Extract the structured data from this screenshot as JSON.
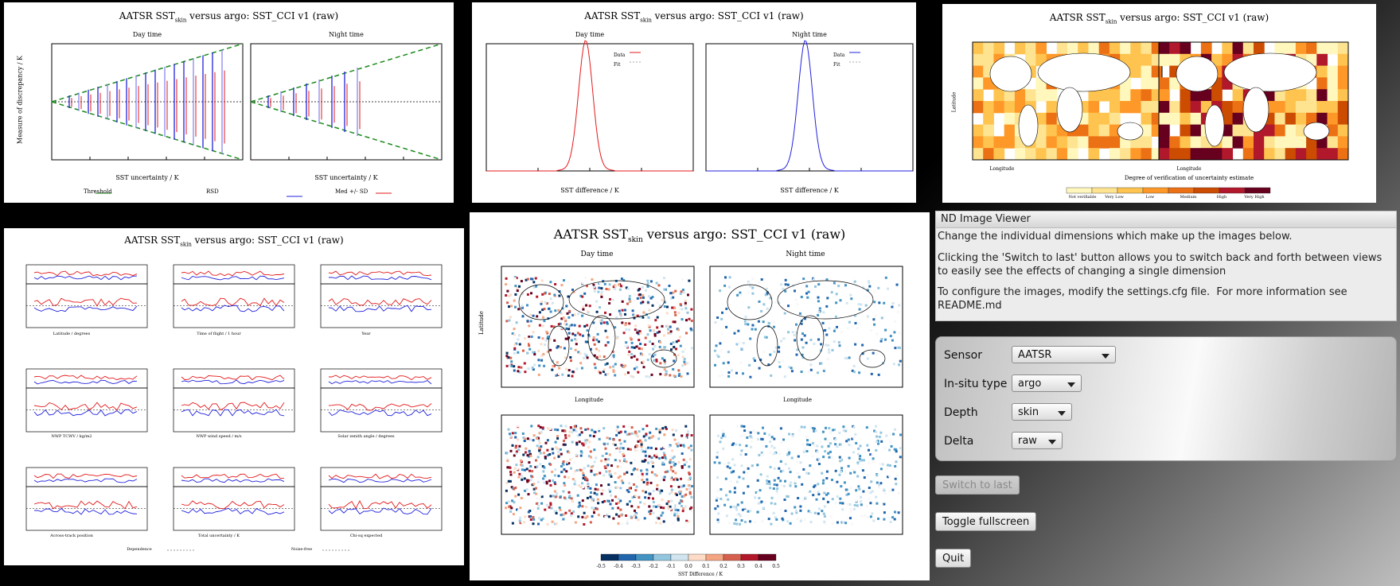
{
  "plots": {
    "title_prefix": "AATSR SST",
    "title_sub": "skin",
    "title_suffix": " versus argo: SST_CCI v1 (raw)",
    "discrepancy": {
      "day": "Day time",
      "night": "Night time",
      "ylabel": "Measure of discrepancy / K",
      "xlabel": "SST uncertainty / K",
      "legend": [
        "Threshold",
        "RSD",
        "Med +/- SD"
      ]
    },
    "histogram": {
      "day": "Day time",
      "night": "Night time",
      "xlabel": "SST difference / K",
      "legend_data": "Data",
      "legend_fit": "Fit"
    },
    "map_verify": {
      "ylabel": "Latitude",
      "xlabel": "Longitude",
      "caption": "Degree of verification of uncertainty estimate",
      "legend": [
        "Not verifiable",
        "Very Low",
        "Low",
        "Medium",
        "High",
        "Very High"
      ]
    },
    "dependence": {
      "xlabels": [
        "Latitude / degrees",
        "Time of flight / 1 hour",
        "Year",
        "NWP TCWV / kg/m2",
        "NWP wind speed / m/s",
        "Solar zenith angle / degrees",
        "Across-track position",
        "Total uncertainty / K",
        "Chi-sq expected"
      ],
      "legend": [
        "Dependence",
        "Noise-free"
      ]
    },
    "maps": {
      "day": "Day time",
      "night": "Night time",
      "ylabel": "Latitude",
      "xlabel": "Longitude",
      "colorbar_label": "SST Difference / K",
      "colorbar_ticks": [
        "-0.5",
        "-0.4",
        "-0.3",
        "-0.2",
        "-0.1",
        "0.0",
        "0.1",
        "0.2",
        "0.3",
        "0.4",
        "0.5"
      ]
    }
  },
  "viewer": {
    "title": "ND Image Viewer",
    "line1": "Change the individual dimensions which make up the images below.",
    "line2": "Clicking the 'Switch to last' button allows you to switch back and forth between views to easily see the effects of changing a single dimension",
    "line3": "To configure the images, modify the settings.cfg file.  For more information see README.md"
  },
  "controls": {
    "sensor_label": "Sensor",
    "sensor_value": "AATSR",
    "insitu_label": "In-situ type",
    "insitu_value": "argo",
    "depth_label": "Depth",
    "depth_value": "skin",
    "delta_label": "Delta",
    "delta_value": "raw"
  },
  "buttons": {
    "switch": "Switch to last",
    "fullscreen": "Toggle fullscreen",
    "quit": "Quit"
  },
  "colors": {
    "day": "#e31a1c",
    "night": "#2222dd",
    "threshold": "#1a8a1a"
  }
}
